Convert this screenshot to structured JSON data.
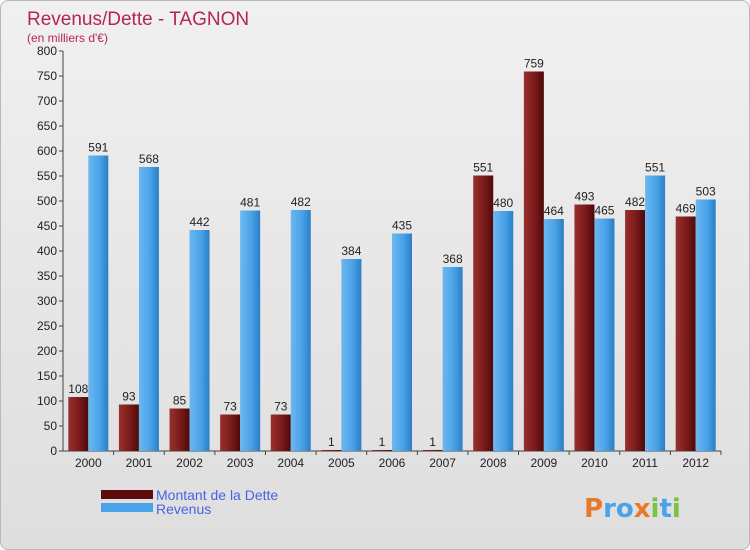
{
  "chart_data": {
    "type": "bar",
    "title": "Revenus/Dette - TAGNON",
    "subtitle": "(en milliers d'€)",
    "categories": [
      "2000",
      "2001",
      "2002",
      "2003",
      "2004",
      "2005",
      "2006",
      "2007",
      "2008",
      "2009",
      "2010",
      "2011",
      "2012"
    ],
    "series": [
      {
        "name": "Montant de la Dette",
        "color": "#7a1a1a",
        "values": [
          108,
          93,
          85,
          73,
          73,
          1,
          1,
          1,
          551,
          759,
          493,
          482,
          469
        ],
        "labels": [
          "108",
          "93",
          "85",
          "73",
          "73",
          "1",
          "1",
          "1",
          "551",
          "759",
          "493",
          "482",
          "469"
        ]
      },
      {
        "name": "Revenus",
        "color": "#4aa3e8",
        "values": [
          591,
          568,
          442,
          481,
          482,
          384,
          435,
          368,
          480,
          464,
          465,
          551,
          503
        ],
        "labels": [
          "591",
          "568",
          "442",
          "481",
          "482",
          "384",
          "435",
          "368",
          "480",
          "464",
          "465",
          "551",
          "503"
        ]
      }
    ],
    "ylim": [
      0,
      800
    ],
    "yticks": [
      "0",
      "50",
      "100",
      "150",
      "200",
      "250",
      "300",
      "350",
      "400",
      "450",
      "500",
      "550",
      "600",
      "650",
      "700",
      "750",
      "800"
    ],
    "grid": false,
    "legend_position": "bottom-left"
  },
  "logo": {
    "text": "Proxiti",
    "colors": [
      "#e8792b",
      "#4aa3e8",
      "#4aa3e8",
      "#e8792b",
      "#7bc142",
      "#4aa3e8",
      "#7bc142"
    ]
  }
}
